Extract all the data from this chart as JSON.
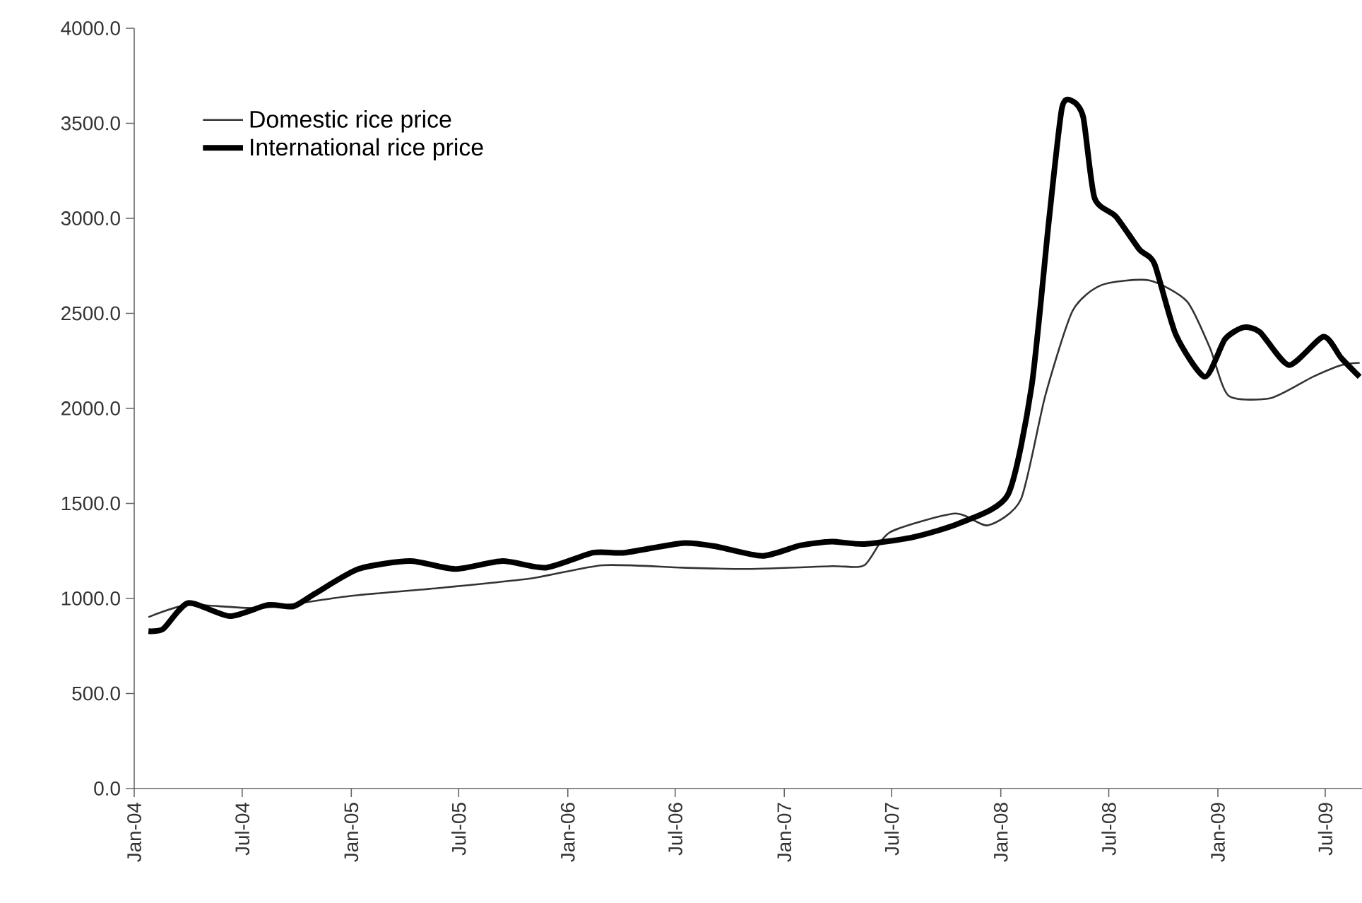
{
  "chart_data": {
    "type": "line",
    "xlim": [
      "2004-01-01",
      "2009-09-01"
    ],
    "xticks": [
      {
        "value": "2004-01-01",
        "label": "Jan-04"
      },
      {
        "value": "2004-07-01",
        "label": "Jul-04"
      },
      {
        "value": "2005-01-01",
        "label": "Jan-05"
      },
      {
        "value": "2005-07-01",
        "label": "Jul-05"
      },
      {
        "value": "2006-01-01",
        "label": "Jan-06"
      },
      {
        "value": "2006-07-01",
        "label": "Jul-06"
      },
      {
        "value": "2007-01-01",
        "label": "Jan-07"
      },
      {
        "value": "2007-07-01",
        "label": "Jul-07"
      },
      {
        "value": "2008-01-01",
        "label": "Jan-08"
      },
      {
        "value": "2008-07-01",
        "label": "Jul-08"
      },
      {
        "value": "2009-01-01",
        "label": "Jan-09"
      },
      {
        "value": "2009-07-01",
        "label": "Jul-09"
      }
    ],
    "ylim": [
      0,
      4000
    ],
    "yticks": [
      {
        "value": 0,
        "label": "0.0"
      },
      {
        "value": 500,
        "label": "500.0"
      },
      {
        "value": 1000,
        "label": "1000.0"
      },
      {
        "value": 1500,
        "label": "1500.0"
      },
      {
        "value": 2000,
        "label": "2000.0"
      },
      {
        "value": 2500,
        "label": "2500.0"
      },
      {
        "value": 3000,
        "label": "3000.0"
      },
      {
        "value": 3500,
        "label": "3500.0"
      },
      {
        "value": 4000,
        "label": "4000.0"
      }
    ],
    "grid": false,
    "legend": "top left",
    "marker": "none",
    "line_style": "solid",
    "series": [
      {
        "name": "Domestic rice price",
        "color": "#333333",
        "x": [
          "2004-01-25",
          "2004-04-01",
          "2004-08-01",
          "2005-01-01",
          "2005-06-01",
          "2005-11-01",
          "2006-03-01",
          "2006-07-13",
          "2006-11-01",
          "2007-03-22",
          "2007-05-16",
          "2007-06-28",
          "2007-10-16",
          "2007-12-10",
          "2008-02-04",
          "2008-03-16",
          "2008-05-01",
          "2008-06-19",
          "2008-09-07",
          "2008-11-10",
          "2008-12-19",
          "2009-01-19",
          "2009-04-01",
          "2009-06-10",
          "2009-07-28",
          "2009-08-28"
        ],
        "values": [
          902,
          966,
          950,
          1014,
          1056,
          1106,
          1175,
          1162,
          1155,
          1170,
          1175,
          1348,
          1447,
          1385,
          1522,
          2067,
          2513,
          2649,
          2674,
          2563,
          2315,
          2067,
          2055,
          2166,
          2228,
          2240
        ]
      },
      {
        "name": "International rice price",
        "color": "#000000",
        "x": [
          "2004-01-25",
          "2004-02-19",
          "2004-04-01",
          "2004-06-10",
          "2004-08-13",
          "2004-09-25",
          "2004-11-01",
          "2005-01-13",
          "2005-04-10",
          "2005-06-25",
          "2005-09-13",
          "2005-11-25",
          "2006-02-13",
          "2006-04-07",
          "2006-07-13",
          "2006-09-07",
          "2006-11-25",
          "2007-01-28",
          "2007-03-22",
          "2007-05-16",
          "2007-08-07",
          "2007-10-25",
          "2008-01-13",
          "2008-02-22",
          "2008-03-22",
          "2008-04-13",
          "2008-05-01",
          "2008-05-19",
          "2008-06-07",
          "2008-07-13",
          "2008-08-22",
          "2008-09-16",
          "2008-10-22",
          "2008-12-10",
          "2009-01-13",
          "2009-02-13",
          "2009-03-13",
          "2009-05-01",
          "2009-06-28",
          "2009-07-28",
          "2009-08-28"
        ],
        "values": [
          828,
          840,
          976,
          907,
          966,
          958,
          1026,
          1155,
          1197,
          1155,
          1197,
          1162,
          1241,
          1241,
          1291,
          1274,
          1224,
          1279,
          1299,
          1286,
          1323,
          1398,
          1546,
          2117,
          2984,
          3579,
          3616,
          3532,
          3108,
          3010,
          2835,
          2761,
          2389,
          2166,
          2364,
          2426,
          2401,
          2228,
          2377,
          2265,
          2166
        ]
      }
    ]
  }
}
